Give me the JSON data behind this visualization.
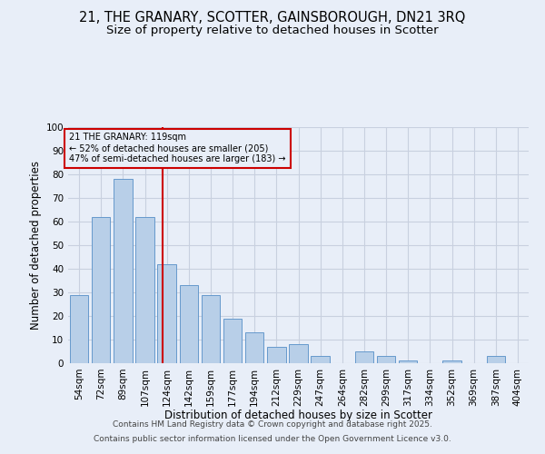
{
  "title_line1": "21, THE GRANARY, SCOTTER, GAINSBOROUGH, DN21 3RQ",
  "title_line2": "Size of property relative to detached houses in Scotter",
  "xlabel": "Distribution of detached houses by size in Scotter",
  "ylabel": "Number of detached properties",
  "categories": [
    "54sqm",
    "72sqm",
    "89sqm",
    "107sqm",
    "124sqm",
    "142sqm",
    "159sqm",
    "177sqm",
    "194sqm",
    "212sqm",
    "229sqm",
    "247sqm",
    "264sqm",
    "282sqm",
    "299sqm",
    "317sqm",
    "334sqm",
    "352sqm",
    "369sqm",
    "387sqm",
    "404sqm"
  ],
  "values": [
    29,
    62,
    78,
    62,
    42,
    33,
    29,
    19,
    13,
    7,
    8,
    3,
    0,
    5,
    3,
    1,
    0,
    1,
    0,
    3,
    0
  ],
  "bar_color": "#b8cfe8",
  "bar_edge_color": "#6699cc",
  "background_color": "#e8eef8",
  "grid_color": "#c8d0df",
  "annotation_box_color": "#cc0000",
  "red_line_color": "#cc0000",
  "red_line_x": 3.82,
  "annotation_text_line1": "21 THE GRANARY: 119sqm",
  "annotation_text_line2": "← 52% of detached houses are smaller (205)",
  "annotation_text_line3": "47% of semi-detached houses are larger (183) →",
  "annotation_fontsize": 7.0,
  "ylim": [
    0,
    100
  ],
  "yticks": [
    0,
    10,
    20,
    30,
    40,
    50,
    60,
    70,
    80,
    90,
    100
  ],
  "title_fontsize": 10.5,
  "subtitle_fontsize": 9.5,
  "xlabel_fontsize": 8.5,
  "ylabel_fontsize": 8.5,
  "tick_fontsize": 7.5,
  "footer_line1": "Contains HM Land Registry data © Crown copyright and database right 2025.",
  "footer_line2": "Contains public sector information licensed under the Open Government Licence v3.0."
}
